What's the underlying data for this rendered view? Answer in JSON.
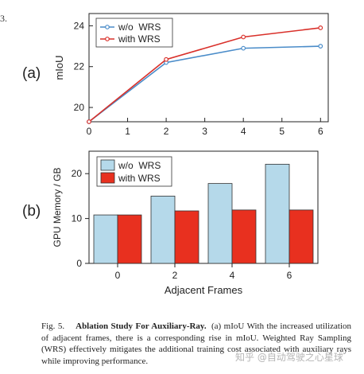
{
  "chart_data": [
    {
      "type": "line",
      "panel_label": "(a)",
      "xlabel": "",
      "ylabel": "mIoU",
      "xlim": [
        0,
        6.2
      ],
      "ylim": [
        19.3,
        24.6
      ],
      "xticks": [
        0,
        1,
        2,
        3,
        4,
        5,
        6
      ],
      "yticks": [
        20,
        22,
        24
      ],
      "legend_position": "top-left",
      "series": [
        {
          "name": "w/o  WRS",
          "color": "#4a8cc9",
          "x": [
            0,
            2,
            4,
            6
          ],
          "y": [
            19.3,
            22.2,
            22.9,
            23.0
          ]
        },
        {
          "name": "with WRS",
          "color": "#d9302a",
          "x": [
            0,
            2,
            4,
            6
          ],
          "y": [
            19.3,
            22.35,
            23.45,
            23.9
          ]
        }
      ]
    },
    {
      "type": "bar",
      "panel_label": "(b)",
      "xlabel": "Adjacent Frames",
      "ylabel": "GPU Memory / GB",
      "categories": [
        "0",
        "2",
        "4",
        "6"
      ],
      "ylim": [
        0,
        25
      ],
      "yticks": [
        0,
        10,
        20
      ],
      "legend_position": "top-left",
      "series": [
        {
          "name": "w/o  WRS",
          "color": "#b5d9ea",
          "values": [
            10.8,
            15.0,
            17.8,
            22.1
          ]
        },
        {
          "name": "with WRS",
          "color": "#e8301f",
          "values": [
            10.8,
            11.7,
            11.9,
            11.9
          ]
        }
      ]
    }
  ],
  "caption": {
    "fig_label": "Fig. 5.",
    "title": "Ablation Study For Auxiliary-Ray.",
    "text": "(a) mIoU With the increased utilization of adjacent frames, there is a corresponding rise in mIoU. Weighted Ray Sampling (WRS) effectively mitigates the additional training cost associated with auxiliary rays while improving performance."
  },
  "watermark": "知乎 @自动驾驶之心星球",
  "corner_text": "3."
}
